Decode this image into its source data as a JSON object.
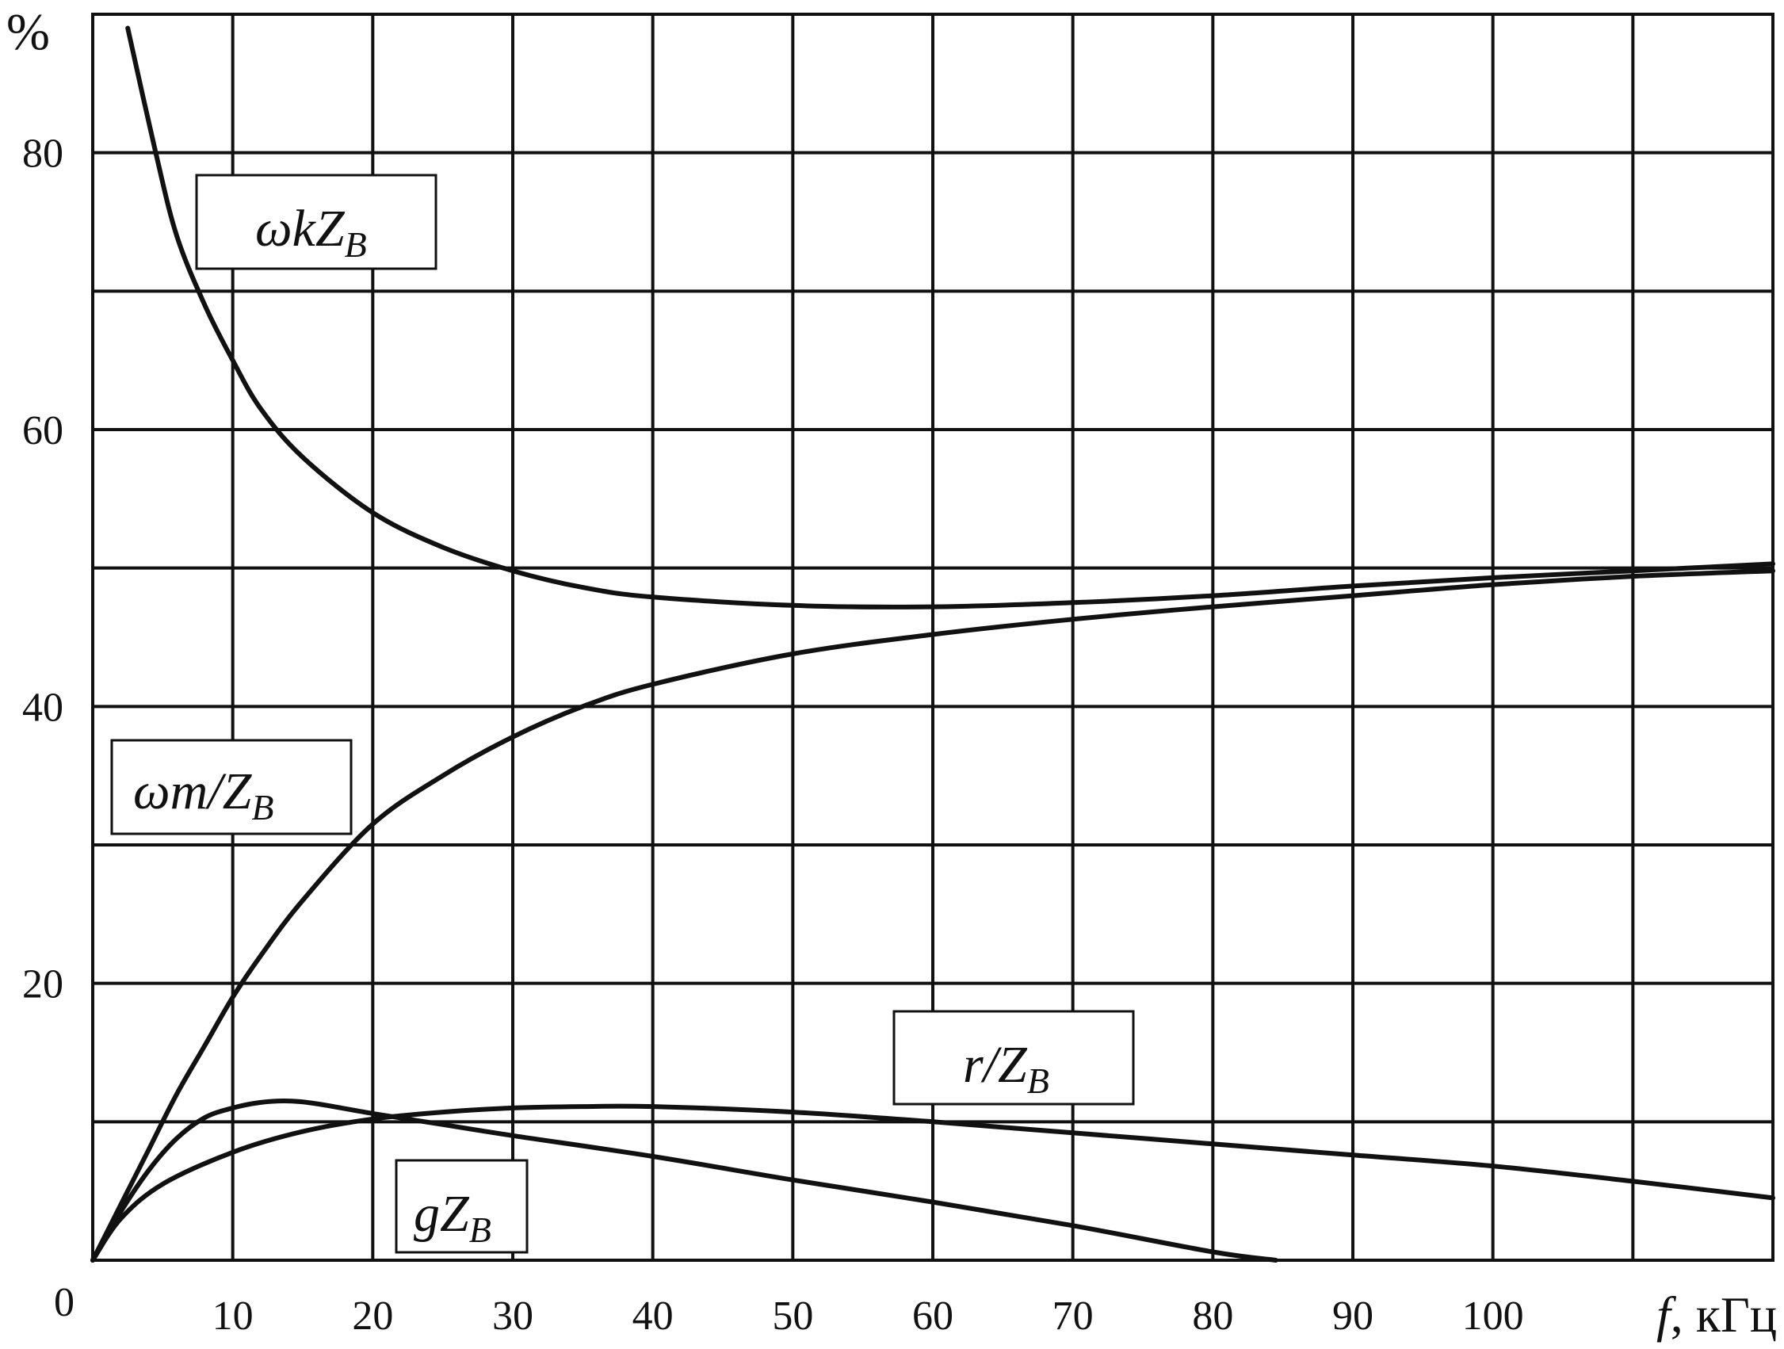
{
  "chart_data": {
    "type": "line",
    "title": "",
    "xlabel_var": "f",
    "xlabel_unit": ", кГц",
    "ylabel": "%",
    "xlim": [
      0,
      120
    ],
    "ylim": [
      0,
      90
    ],
    "x_ticks": [
      10,
      20,
      30,
      40,
      50,
      60,
      70,
      80,
      90,
      100
    ],
    "y_ticks": [
      0,
      20,
      40,
      60,
      80
    ],
    "origin_label": "0",
    "grid": true,
    "series": [
      {
        "name": "ωkZB",
        "label": {
          "main": "ωkZ",
          "sub": "B"
        },
        "x": [
          2.5,
          4.5,
          6,
          8,
          10,
          12,
          15,
          20,
          25,
          30,
          35,
          40,
          50,
          60,
          70,
          80,
          90,
          100,
          110,
          120
        ],
        "y": [
          89,
          80,
          74,
          69,
          65,
          61.5,
          58,
          54,
          51.5,
          49.8,
          48.6,
          47.9,
          47.3,
          47.2,
          47.5,
          48,
          48.7,
          49.3,
          49.8,
          50.3
        ]
      },
      {
        "name": "ωm/ZB",
        "label": {
          "main": "ωm/Z",
          "sub": "B"
        },
        "x": [
          0,
          2,
          4,
          6,
          8,
          10,
          12,
          15,
          20,
          25,
          30,
          35,
          40,
          50,
          60,
          70,
          80,
          90,
          100,
          110,
          120
        ],
        "y": [
          0,
          4,
          8,
          12,
          15.5,
          19,
          22,
          26,
          31.5,
          35,
          37.8,
          40,
          41.6,
          43.8,
          45.2,
          46.3,
          47.2,
          48,
          48.8,
          49.4,
          49.8
        ]
      },
      {
        "name": "r/ZB",
        "label": {
          "main": "r/Z",
          "sub": "B"
        },
        "x": [
          0,
          2,
          5,
          10,
          15,
          20,
          25,
          30,
          35,
          40,
          50,
          60,
          70,
          80,
          90,
          100,
          110,
          120
        ],
        "y": [
          0,
          3,
          5.5,
          7.8,
          9.3,
          10.2,
          10.7,
          11,
          11.1,
          11.1,
          10.7,
          10,
          9.2,
          8.4,
          7.6,
          6.8,
          5.7,
          4.5
        ]
      },
      {
        "name": "gZB",
        "label": {
          "main": "gZ",
          "sub": "B"
        },
        "x": [
          0,
          2,
          4,
          6,
          8,
          10,
          12,
          14,
          16,
          20,
          25,
          30,
          40,
          50,
          60,
          70,
          80,
          84.5
        ],
        "y": [
          0,
          3.5,
          6.5,
          8.8,
          10.3,
          11,
          11.4,
          11.5,
          11.3,
          10.6,
          9.8,
          9,
          7.5,
          5.8,
          4.2,
          2.5,
          0.6,
          0
        ]
      }
    ]
  }
}
